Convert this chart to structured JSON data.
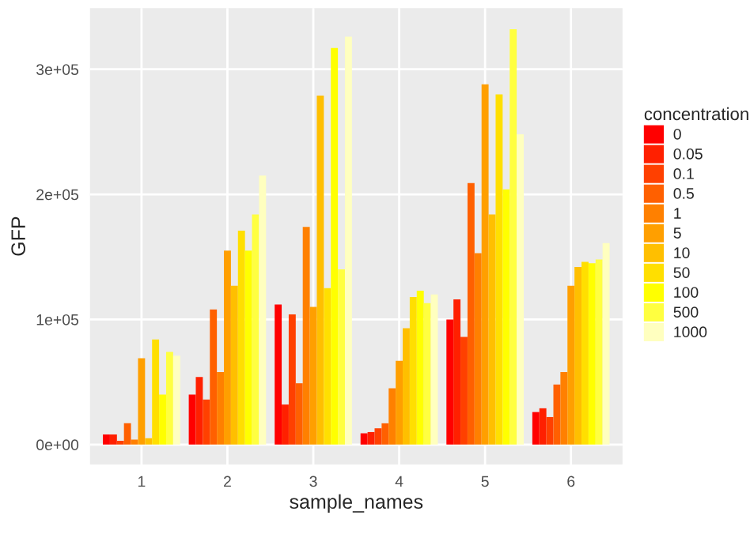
{
  "chart_data": {
    "type": "bar",
    "xlabel": "sample_names",
    "ylabel": "GFP",
    "legend_title": "concentration",
    "legend": "right",
    "grid": true,
    "categories": [
      "1",
      "2",
      "3",
      "4",
      "5",
      "6"
    ],
    "ylim": [
      -16000,
      349000
    ],
    "yticks": [
      {
        "value": 0,
        "label": "0e+00"
      },
      {
        "value": 100000,
        "label": "1e+05"
      },
      {
        "value": 200000,
        "label": "2e+05"
      },
      {
        "value": 300000,
        "label": "3e+05"
      }
    ],
    "series": [
      {
        "name": "0",
        "color": "#ff0000",
        "values": [
          8000,
          40000,
          112000,
          9000,
          100000,
          26000
        ]
      },
      {
        "name": "0.05",
        "color": "#ff2000",
        "values": [
          8000,
          54000,
          32000,
          10000,
          116000,
          29000
        ]
      },
      {
        "name": "0.1",
        "color": "#ff4000",
        "values": [
          3000,
          36000,
          104000,
          13000,
          86000,
          22000
        ]
      },
      {
        "name": "0.5",
        "color": "#ff6000",
        "values": [
          17000,
          108000,
          49000,
          17000,
          209000,
          48000
        ]
      },
      {
        "name": "1",
        "color": "#ff8000",
        "values": [
          4000,
          58000,
          174000,
          45000,
          153000,
          58000
        ]
      },
      {
        "name": "5",
        "color": "#ff9f00",
        "values": [
          69000,
          155000,
          110000,
          67000,
          288000,
          127000
        ]
      },
      {
        "name": "10",
        "color": "#ffbf00",
        "values": [
          5000,
          127000,
          279000,
          93000,
          184000,
          142000
        ]
      },
      {
        "name": "50",
        "color": "#ffdf00",
        "values": [
          84000,
          171000,
          125000,
          118000,
          280000,
          146000
        ]
      },
      {
        "name": "100",
        "color": "#ffff00",
        "values": [
          40000,
          155000,
          317000,
          123000,
          204000,
          145000
        ]
      },
      {
        "name": "500",
        "color": "#ffff40",
        "values": [
          74000,
          184000,
          140000,
          113000,
          332000,
          148000
        ]
      },
      {
        "name": "1000",
        "color": "#ffffbf",
        "values": [
          71000,
          215000,
          326000,
          120000,
          248000,
          161000
        ]
      }
    ]
  }
}
